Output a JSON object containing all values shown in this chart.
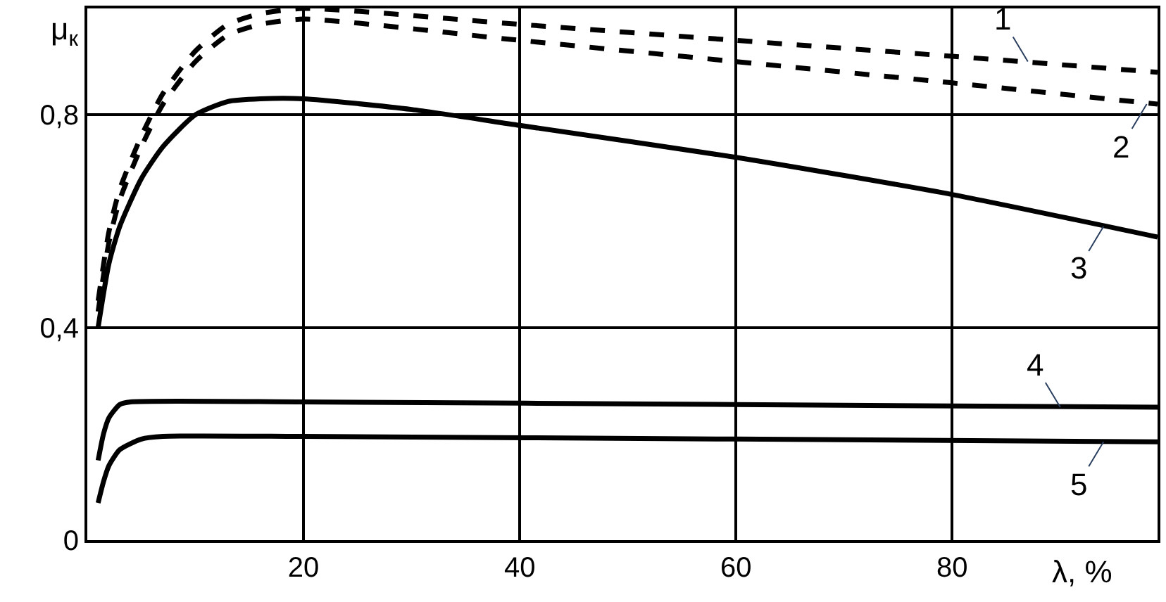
{
  "chart_data": {
    "type": "line",
    "xlabel": "λ, %",
    "ylabel": "μ$_{к}$",
    "xlim": [
      0,
      99
    ],
    "xticks": [
      20,
      40,
      60,
      80
    ],
    "ylim": [
      0,
      1.0
    ],
    "yticks": [
      {
        "value": 0,
        "label": "0"
      },
      {
        "value": 0.4,
        "label": "0,4"
      },
      {
        "value": 0.8,
        "label": "0,8"
      }
    ],
    "grid": true,
    "line_style": "solid",
    "marker": "none",
    "series": [
      {
        "color": "#000000",
        "line_style": "dashed",
        "x": [
          1,
          2,
          3,
          5,
          7,
          10,
          13,
          16,
          20,
          40,
          60,
          80,
          99
        ],
        "values": [
          0.45,
          0.58,
          0.66,
          0.76,
          0.84,
          0.92,
          0.97,
          0.99,
          1.0,
          0.97,
          0.94,
          0.91,
          0.88
        ]
      },
      {
        "color": "#000000",
        "line_style": "dashed",
        "x": [
          1,
          2,
          3,
          5,
          7,
          10,
          13,
          16,
          20,
          40,
          60,
          80,
          99
        ],
        "values": [
          0.43,
          0.56,
          0.64,
          0.74,
          0.82,
          0.9,
          0.95,
          0.97,
          0.98,
          0.94,
          0.9,
          0.86,
          0.82
        ]
      },
      {
        "color": "#000000",
        "x": [
          1,
          2,
          3,
          5,
          7,
          10,
          13,
          16,
          20,
          30,
          40,
          60,
          80,
          99
        ],
        "values": [
          0.4,
          0.52,
          0.59,
          0.68,
          0.74,
          0.8,
          0.825,
          0.83,
          0.83,
          0.81,
          0.78,
          0.72,
          0.65,
          0.57
        ]
      },
      {
        "color": "#000000",
        "x": [
          1,
          1.5,
          2,
          3,
          4,
          20,
          60,
          99
        ],
        "values": [
          0.15,
          0.2,
          0.23,
          0.255,
          0.26,
          0.26,
          0.255,
          0.25
        ]
      },
      {
        "color": "#000000",
        "x": [
          1,
          1.5,
          2,
          3,
          5,
          7,
          20,
          60,
          99
        ],
        "values": [
          0.07,
          0.11,
          0.14,
          0.17,
          0.19,
          0.195,
          0.195,
          0.19,
          0.185
        ]
      }
    ],
    "annotations": [
      {
        "text": "1",
        "x": 87,
        "y": 0.9
      },
      {
        "text": "2",
        "x": 98,
        "y": 0.82
      },
      {
        "text": "3",
        "x": 94,
        "y": 0.59
      },
      {
        "text": "4",
        "x": 90,
        "y": 0.25
      },
      {
        "text": "5",
        "x": 94,
        "y": 0.185
      }
    ]
  }
}
